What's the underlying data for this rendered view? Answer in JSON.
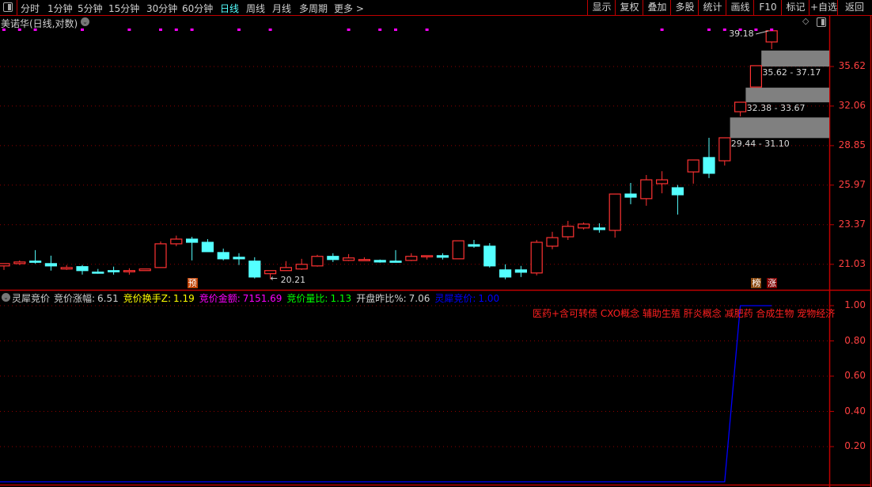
{
  "toolbar": {
    "left_icon": "panel-toggle-icon",
    "periods": [
      "分时",
      "1分钟",
      "5分钟",
      "15分钟",
      "30分钟",
      "60分钟",
      "日线",
      "周线",
      "月线",
      "多周期",
      "更多 >"
    ],
    "active_period": "日线",
    "buttons": [
      "显示",
      "复权",
      "叠加",
      "多股",
      "统计",
      "画线",
      "F10",
      "标记",
      "+自选",
      "返回"
    ]
  },
  "main_chart": {
    "title": "美诺华(日线,对数)",
    "scale": "log",
    "y_axis_labels": [
      "35.62",
      "32.06",
      "28.85",
      "25.97",
      "23.37",
      "21.03"
    ],
    "up_color": "#ff3232",
    "down_color": "#54ffff",
    "candles_ohlc": [
      [
        20.94,
        21.07,
        20.72,
        21.07
      ],
      [
        21.07,
        21.25,
        20.99,
        21.16
      ],
      [
        21.21,
        21.84,
        21.07,
        21.18
      ],
      [
        21.07,
        21.52,
        20.68,
        20.94
      ],
      [
        20.77,
        20.99,
        20.72,
        20.85
      ],
      [
        20.9,
        20.99,
        20.46,
        20.68
      ],
      [
        20.6,
        20.77,
        20.51,
        20.59
      ],
      [
        20.68,
        20.9,
        20.46,
        20.66
      ],
      [
        20.64,
        20.81,
        20.46,
        20.68
      ],
      [
        20.68,
        20.77,
        20.68,
        20.77
      ],
      [
        20.85,
        22.35,
        20.85,
        22.21
      ],
      [
        22.21,
        22.7,
        22.07,
        22.49
      ],
      [
        22.49,
        22.63,
        21.25,
        22.3
      ],
      [
        22.3,
        22.49,
        21.75,
        21.75
      ],
      [
        21.7,
        21.93,
        21.25,
        21.34
      ],
      [
        21.43,
        21.66,
        20.99,
        21.34
      ],
      [
        21.21,
        21.43,
        20.25,
        20.33
      ],
      [
        20.51,
        20.68,
        20.21,
        20.68
      ],
      [
        20.68,
        21.21,
        20.68,
        20.85
      ],
      [
        20.77,
        21.34,
        20.72,
        21.03
      ],
      [
        20.94,
        21.57,
        20.9,
        21.48
      ],
      [
        21.48,
        21.66,
        21.16,
        21.3
      ],
      [
        21.25,
        21.61,
        21.21,
        21.39
      ],
      [
        21.25,
        21.43,
        21.25,
        21.3
      ],
      [
        21.25,
        21.3,
        21.12,
        21.16
      ],
      [
        21.21,
        21.84,
        21.18,
        21.18
      ],
      [
        21.25,
        21.66,
        21.21,
        21.48
      ],
      [
        21.48,
        21.52,
        21.3,
        21.52
      ],
      [
        21.52,
        21.66,
        21.3,
        21.43
      ],
      [
        21.34,
        22.39,
        21.34,
        22.39
      ],
      [
        22.16,
        22.44,
        21.98,
        22.07
      ],
      [
        22.07,
        22.25,
        20.85,
        20.94
      ],
      [
        20.72,
        21.03,
        20.21,
        20.33
      ],
      [
        20.72,
        20.94,
        20.33,
        20.59
      ],
      [
        20.55,
        22.44,
        20.42,
        22.3
      ],
      [
        22.07,
        22.93,
        21.89,
        22.58
      ],
      [
        22.63,
        23.61,
        22.44,
        23.27
      ],
      [
        23.17,
        23.51,
        23.07,
        23.41
      ],
      [
        23.17,
        23.46,
        22.88,
        23.07
      ],
      [
        23.02,
        25.36,
        22.58,
        25.36
      ],
      [
        25.36,
        26.12,
        24.68,
        25.15
      ],
      [
        25.05,
        26.68,
        24.58,
        26.34
      ],
      [
        26.07,
        26.95,
        25.41,
        26.34
      ],
      [
        25.79,
        25.98,
        24.01,
        25.31
      ],
      [
        26.9,
        27.77,
        26.07,
        27.77
      ],
      [
        27.95,
        29.46,
        26.46,
        26.8
      ],
      [
        27.71,
        29.46,
        27.36,
        29.46
      ],
      [
        31.58,
        32.39,
        31.19,
        32.39
      ],
      [
        33.72,
        35.7,
        33.72,
        35.7
      ],
      [
        38.03,
        39.18,
        37.31,
        39.18
      ]
    ],
    "signal_dot_candles": [
      0,
      1,
      2,
      5,
      8,
      10,
      11,
      12,
      15,
      17,
      22,
      24,
      25,
      27,
      42,
      45,
      46,
      47,
      48,
      49
    ],
    "signal_dot_color": "#ff00ff",
    "gap_bands": [
      {
        "low": 29.44,
        "high": 31.1,
        "start_candle": 47,
        "label": "29.44 - 31.10"
      },
      {
        "low": 32.38,
        "high": 33.67,
        "start_candle": 48,
        "label": "32.38 - 33.67"
      },
      {
        "low": 35.62,
        "high": 37.17,
        "start_candle": 49,
        "label": "35.62 - 37.17"
      }
    ],
    "high_annotation": {
      "candle": 49,
      "label": "39.18"
    },
    "low_annotation": {
      "candle": 17,
      "label": "20.21"
    },
    "badges": [
      {
        "candle": 12,
        "text": "预",
        "color": "#c04000"
      },
      {
        "candle": 48,
        "text": "榜",
        "color": "#8a4a10"
      },
      {
        "candle": 49,
        "text": "涨",
        "color": "#800000"
      }
    ]
  },
  "indicator": {
    "name": "灵犀竞价",
    "fields": [
      {
        "label": "竞价涨幅:",
        "value": "6.51",
        "color": "#d0d0d0"
      },
      {
        "label": "竞价换手Z:",
        "value": "1.19",
        "color": "#ffff00"
      },
      {
        "label": "竞价金额:",
        "value": "7151.69",
        "color": "#ff00ff"
      },
      {
        "label": "竞价量比:",
        "value": "1.13",
        "color": "#00ff00"
      },
      {
        "label": "开盘昨比%:",
        "value": "7.06",
        "color": "#d0d0d0"
      },
      {
        "label": "灵犀竞价:",
        "value": "1.00",
        "color": "#0000ff"
      }
    ],
    "concepts": "医药+含可转债 CXO概念 辅助生殖 肝炎概念 减肥药 合成生物 宠物经济",
    "concepts_color": "#ff2020",
    "y_axis_labels": [
      "1.00",
      "0.80",
      "0.60",
      "0.40",
      "0.20"
    ],
    "y_range": [
      0,
      1
    ],
    "line_color": "#0000ff",
    "line_values_by_candle": [
      0,
      0,
      0,
      0,
      0,
      0,
      0,
      0,
      0,
      0,
      0,
      0,
      0,
      0,
      0,
      0,
      0,
      0,
      0,
      0,
      0,
      0,
      0,
      0,
      0,
      0,
      0,
      0,
      0,
      0,
      0,
      0,
      0,
      0,
      0,
      0,
      0,
      0,
      0,
      0,
      0,
      0,
      0,
      0,
      0,
      0,
      0,
      1,
      1,
      1
    ]
  }
}
